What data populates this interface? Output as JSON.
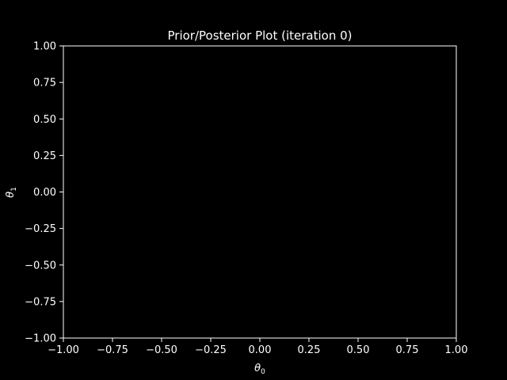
{
  "chart_data": {
    "type": "scatter",
    "title": "Prior/Posterior Plot (iteration 0)",
    "xlabel": {
      "symbol": "θ",
      "subscript": "0"
    },
    "ylabel": {
      "symbol": "θ",
      "subscript": "1"
    },
    "xlim": [
      -1.0,
      1.0
    ],
    "ylim": [
      -1.0,
      1.0
    ],
    "xticks": [
      -1.0,
      -0.75,
      -0.5,
      -0.25,
      0.0,
      0.25,
      0.5,
      0.75,
      1.0
    ],
    "yticks": [
      -1.0,
      -0.75,
      -0.5,
      -0.25,
      0.0,
      0.25,
      0.5,
      0.75,
      1.0
    ],
    "xtick_labels": [
      "−1.00",
      "−0.75",
      "−0.50",
      "−0.25",
      "0.00",
      "0.25",
      "0.50",
      "0.75",
      "1.00"
    ],
    "ytick_labels": [
      "−1.00",
      "−0.75",
      "−0.50",
      "−0.25",
      "0.00",
      "0.25",
      "0.50",
      "0.75",
      "1.00"
    ],
    "series": [],
    "grid": false,
    "background_color": "#000000",
    "foreground_color": "#ffffff"
  }
}
